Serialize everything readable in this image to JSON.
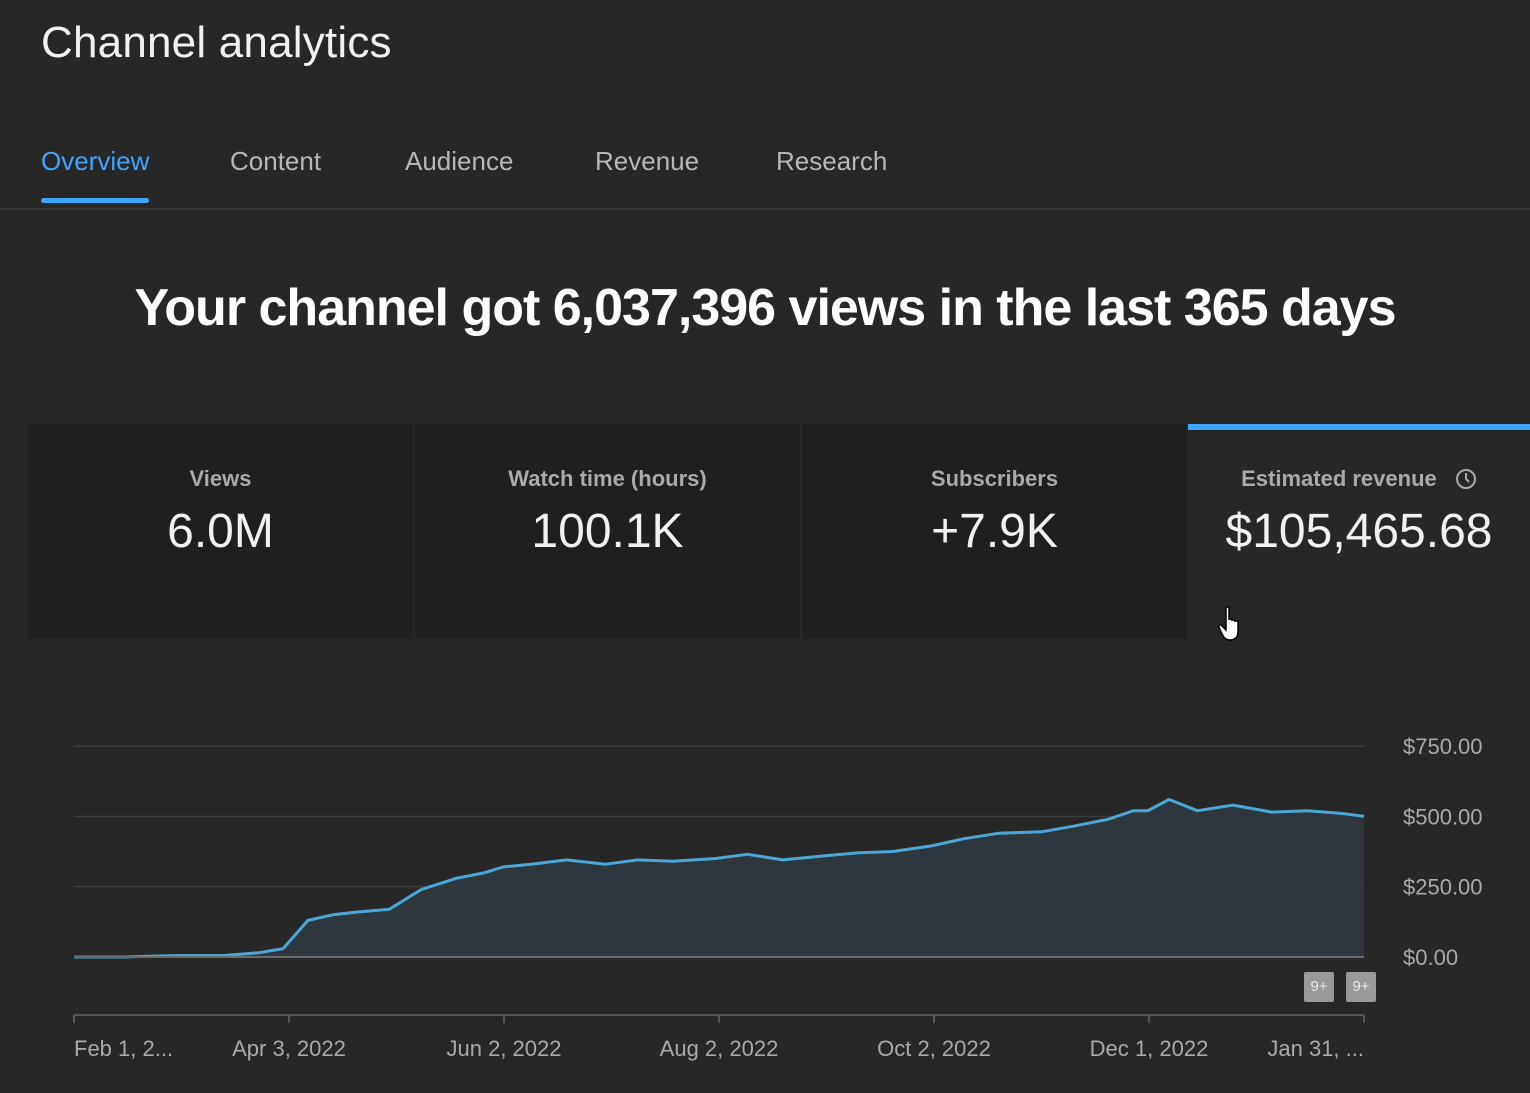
{
  "page": {
    "title": "Channel analytics"
  },
  "tabs": [
    {
      "label": "Overview",
      "active": true
    },
    {
      "label": "Content",
      "active": false
    },
    {
      "label": "Audience",
      "active": false
    },
    {
      "label": "Revenue",
      "active": false
    },
    {
      "label": "Research",
      "active": false
    }
  ],
  "headline": "Your channel got 6,037,396 views in the last 365 days",
  "metrics": [
    {
      "label": "Views",
      "value": "6.0M"
    },
    {
      "label": "Watch time (hours)",
      "value": "100.1K"
    },
    {
      "label": "Subscribers",
      "value": "+7.9K"
    },
    {
      "label": "Estimated revenue",
      "value": "$105,465.68",
      "selected": true
    }
  ],
  "badges": [
    "9+",
    "9+"
  ],
  "colors": {
    "accent": "#3ea6ff",
    "line": "#4aa8d8",
    "background": "#272727"
  },
  "chart_data": {
    "type": "line",
    "series": [
      {
        "x": [
          "2022-02-01",
          "2022-02-15",
          "2022-03-01",
          "2022-03-15",
          "2022-03-25",
          "2022-04-01",
          "2022-04-08",
          "2022-04-15",
          "2022-04-22",
          "2022-05-01",
          "2022-05-10",
          "2022-05-20",
          "2022-05-28",
          "2022-06-02",
          "2022-06-10",
          "2022-06-20",
          "2022-07-01",
          "2022-07-10",
          "2022-07-20",
          "2022-08-01",
          "2022-08-10",
          "2022-08-20",
          "2022-09-01",
          "2022-09-10",
          "2022-09-20",
          "2022-10-01",
          "2022-10-10",
          "2022-10-20",
          "2022-11-01",
          "2022-11-10",
          "2022-11-20",
          "2022-11-27",
          "2022-12-01",
          "2022-12-07",
          "2022-12-15",
          "2022-12-25",
          "2023-01-05",
          "2023-01-15",
          "2023-01-25",
          "2023-01-31"
        ],
        "y": [
          0,
          0,
          5,
          5,
          15,
          30,
          130,
          150,
          160,
          170,
          240,
          280,
          300,
          320,
          330,
          345,
          330,
          345,
          340,
          350,
          365,
          345,
          360,
          370,
          375,
          395,
          420,
          440,
          445,
          465,
          490,
          520,
          520,
          560,
          520,
          540,
          515,
          520,
          510,
          500
        ]
      }
    ],
    "x_tick_labels": [
      "Feb 1, 2...",
      "Apr 3, 2022",
      "Jun 2, 2022",
      "Aug 2, 2022",
      "Oct 2, 2022",
      "Dec 1, 2022",
      "Jan 31, ..."
    ],
    "y_tick_labels": [
      "$750.00",
      "$500.00",
      "$250.00",
      "$0.00"
    ],
    "ylim": [
      0,
      750
    ],
    "grid": true
  }
}
